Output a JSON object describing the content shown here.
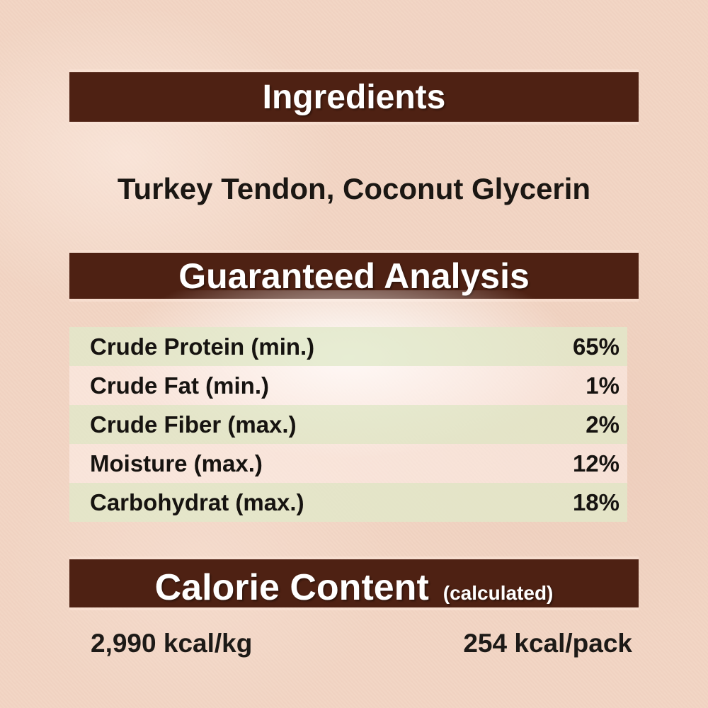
{
  "theme": {
    "background_color": "#f2d5c4",
    "header_bar_color": "#4e2113",
    "header_text_color": "#ffffff",
    "body_text_color": "#1b1713",
    "row_green_color": "#e6e9d1",
    "row_pink_color": "#fdeeea"
  },
  "ingredients": {
    "title": "Ingredients",
    "list": "Turkey Tendon, Coconut Glycerin"
  },
  "guaranteed_analysis": {
    "title": "Guaranteed Analysis",
    "rows": [
      {
        "label": "Crude Protein (min.)",
        "value": "65%"
      },
      {
        "label": "Crude Fat (min.)",
        "value": "1%"
      },
      {
        "label": "Crude Fiber (max.)",
        "value": "2%"
      },
      {
        "label": "Moisture (max.)",
        "value": "12%"
      },
      {
        "label": "Carbohydrat (max.)",
        "value": "18%"
      }
    ]
  },
  "calorie_content": {
    "title": "Calorie Content",
    "subtitle": "(calculated)",
    "per_kg": "2,990 kcal/kg",
    "per_pack": "254 kcal/pack"
  }
}
